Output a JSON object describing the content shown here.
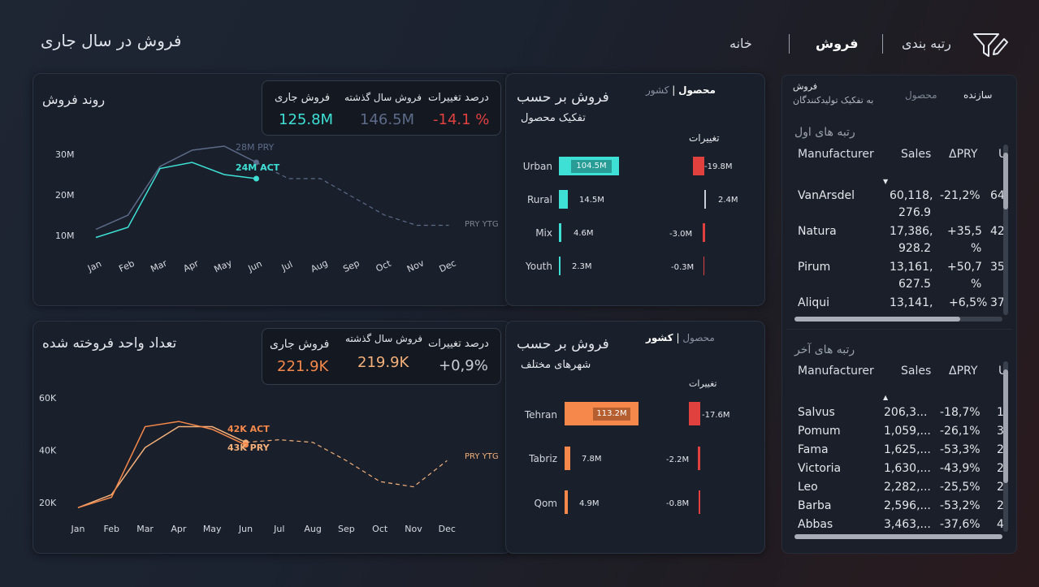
{
  "header": {
    "page_title": "فروش در سال جاری",
    "nav": [
      "خانه",
      "فروش",
      "رتبه بندی"
    ]
  },
  "trend": {
    "title": "روند فروش",
    "kpi": {
      "current_label": "فروش جاری",
      "current_value": "125.8M",
      "prev_label": "فروش سال گذشته",
      "prev_value": "146.5M",
      "change_label": "درصد تغییرات",
      "change_value": "-14.1 %"
    },
    "labels": {
      "pry": "28M PRY",
      "act": "24M ACT",
      "ytg": "PRY YTG"
    }
  },
  "units": {
    "title": "تعداد واحد فروخته شده",
    "kpi": {
      "current_label": "فروش جاری",
      "current_value": "221.9K",
      "prev_label": "فروش سال گذشته",
      "prev_value": "219.9K",
      "change_label": "درصد تغییرات",
      "change_value": "+0,9%"
    },
    "labels": {
      "act": "42K ACT",
      "pry": "43K PRY",
      "ytg": "PRY YTG"
    }
  },
  "product_breakdown": {
    "tab_country": "کشور",
    "tab_product": "محصول",
    "title": "فروش بر حسب",
    "subtitle": "تفکیک محصول",
    "change_header": "تغییرات",
    "rows": [
      {
        "cat": "Urban",
        "value": "104.5M",
        "change": "-19.8M"
      },
      {
        "cat": "Rural",
        "value": "14.5M",
        "change": "2.4M"
      },
      {
        "cat": "Mix",
        "value": "4.6M",
        "change": "-3.0M"
      },
      {
        "cat": "Youth",
        "value": "2.3M",
        "change": "-0.3M"
      }
    ]
  },
  "city_breakdown": {
    "tab_country": "کشور",
    "tab_product": "محصول",
    "title": "فروش بر حسب",
    "subtitle": "شهرهای مختلف",
    "change_header": "تغییرات",
    "rows": [
      {
        "cat": "Tehran",
        "value": "113.2M",
        "change": "-17.6M"
      },
      {
        "cat": "Tabriz",
        "value": "7.8M",
        "change": "-2.2M"
      },
      {
        "cat": "Qom",
        "value": "4.9M",
        "change": "-0.8M"
      }
    ]
  },
  "ranking": {
    "tab_maker": "سازنده",
    "tab_product": "محصول",
    "tab_sales": "فروش",
    "tab_sales_sub": "به تفکیک تولیدکنندگان",
    "top_title": "رتبه های اول",
    "bottom_title": "رتبه های آخر",
    "columns": [
      "Manufacturer",
      "Sales",
      "ΔPRY",
      "U"
    ],
    "top_rows": [
      {
        "name": "VanArsdel",
        "sales": "60,118,",
        "sales2": "276.9",
        "delta": "-21,2%",
        "delta2": "",
        "u": "64"
      },
      {
        "name": "Natura",
        "sales": "17,386,",
        "sales2": "928.2",
        "delta": "+35,5",
        "delta2": "%",
        "u": "42"
      },
      {
        "name": "Pirum",
        "sales": "13,161,",
        "sales2": "627.5",
        "delta": "+50,7",
        "delta2": "%",
        "u": "35"
      },
      {
        "name": "Aliqui",
        "sales": "13,141,",
        "sales2": "",
        "delta": "+6,5%",
        "delta2": "",
        "u": "37"
      }
    ],
    "bottom_rows": [
      {
        "name": "Salvus",
        "sales": "206,3...",
        "delta": "-18,7%",
        "u": "1"
      },
      {
        "name": "Pomum",
        "sales": "1,059,...",
        "delta": "-26,1%",
        "u": "3"
      },
      {
        "name": "Fama",
        "sales": "1,625,...",
        "delta": "-53,3%",
        "u": "2"
      },
      {
        "name": "Victoria",
        "sales": "1,630,...",
        "delta": "-43,9%",
        "u": "2"
      },
      {
        "name": "Leo",
        "sales": "2,282,...",
        "delta": "-25,5%",
        "u": "2"
      },
      {
        "name": "Barba",
        "sales": "2,596,...",
        "delta": "-53,2%",
        "u": "2"
      },
      {
        "name": "Abbas",
        "sales": "3,463,...",
        "delta": "-37,6%",
        "u": "4"
      }
    ]
  },
  "colors": {
    "cyan": "#3ee0d6",
    "orange": "#f5884a",
    "red": "#e0413f",
    "slate": "#5c6b8a"
  },
  "chart_data": [
    {
      "type": "line",
      "title": "روند فروش",
      "categories": [
        "Jan",
        "Feb",
        "Mar",
        "Apr",
        "May",
        "Jun",
        "Jul",
        "Aug",
        "Sep",
        "Oct",
        "Nov",
        "Dec"
      ],
      "yticks": [
        "10M",
        "20M",
        "30M"
      ],
      "ylim": [
        5,
        35
      ],
      "series": [
        {
          "name": "ACT",
          "values": [
            9.5,
            12,
            26.5,
            28,
            25,
            24,
            null,
            null,
            null,
            null,
            null,
            null
          ]
        },
        {
          "name": "PRY",
          "values": [
            11.5,
            15,
            27,
            31,
            32,
            28,
            24,
            24,
            19.5,
            15,
            12.5,
            12.5
          ]
        }
      ]
    },
    {
      "type": "line",
      "title": "تعداد واحد فروخته شده",
      "categories": [
        "Jan",
        "Feb",
        "Mar",
        "Apr",
        "May",
        "Jun",
        "Jul",
        "Aug",
        "Sep",
        "Oct",
        "Nov",
        "Dec"
      ],
      "yticks": [
        "20K",
        "40K",
        "60K"
      ],
      "ylim": [
        15,
        65
      ],
      "series": [
        {
          "name": "ACT",
          "values": [
            18,
            22,
            49,
            51,
            48,
            42,
            null,
            null,
            null,
            null,
            null,
            null
          ]
        },
        {
          "name": "PRY",
          "values": [
            18,
            23,
            41,
            49,
            49,
            43,
            44,
            43,
            36,
            28,
            26,
            36
          ]
        }
      ]
    }
  ]
}
